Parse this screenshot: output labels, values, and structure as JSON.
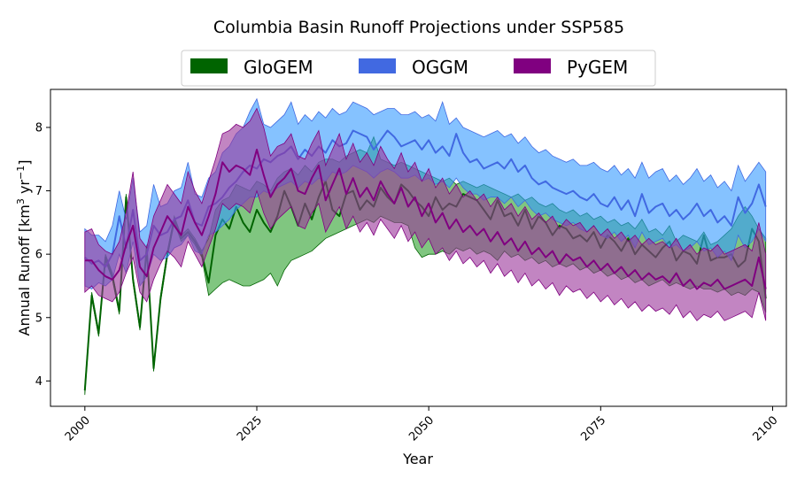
{
  "chart_data": {
    "type": "line",
    "title": "Columbia Basin Runoff Projections under SSP585",
    "xlabel": "Year",
    "ylabel": {
      "main": "Annual Runoff [km",
      "sup1": "3",
      "mid": " yr",
      "sup2": "−1",
      "end": "]"
    },
    "xlim": [
      1995,
      2102
    ],
    "ylim": [
      3.6,
      8.6
    ],
    "x_ticks": [
      2000,
      2025,
      2050,
      2075,
      2100
    ],
    "y_ticks": [
      4,
      5,
      6,
      7,
      8
    ],
    "legend": [
      "GloGEM",
      "OGGM",
      "PyGEM"
    ],
    "legend_position": "top-center",
    "years_start": 2000,
    "series": [
      {
        "name": "GloGEM",
        "color": "#006400",
        "fill": "#2ca02c",
        "mean": [
          3.85,
          5.35,
          4.75,
          5.95,
          5.65,
          5.1,
          6.9,
          5.6,
          4.85,
          6.1,
          4.2,
          5.3,
          6.0,
          6.55,
          6.25,
          6.35,
          6.2,
          6.0,
          5.55,
          6.3,
          6.55,
          6.4,
          6.75,
          6.5,
          6.35,
          6.7,
          6.5,
          6.35,
          6.6,
          7.0,
          6.75,
          6.45,
          6.8,
          6.55,
          6.9,
          7.15,
          6.7,
          6.6,
          6.95,
          7.0,
          6.7,
          6.85,
          6.75,
          7.05,
          6.9,
          6.8,
          7.1,
          7.0,
          6.85,
          6.75,
          6.6,
          6.9,
          6.7,
          6.8,
          6.75,
          6.95,
          6.9,
          6.85,
          6.7,
          6.55,
          6.85,
          6.6,
          6.65,
          6.45,
          6.7,
          6.4,
          6.6,
          6.5,
          6.3,
          6.45,
          6.4,
          6.25,
          6.3,
          6.2,
          6.35,
          6.1,
          6.3,
          6.2,
          6.05,
          6.25,
          6.0,
          6.15,
          6.05,
          5.95,
          6.1,
          6.2,
          5.9,
          6.05,
          6.0,
          5.85,
          6.3,
          5.9,
          5.95,
          5.95,
          6.0,
          5.8,
          5.9,
          6.4,
          6.2,
          5.3
        ],
        "lower": [
          3.78,
          5.3,
          4.7,
          5.9,
          5.6,
          5.05,
          6.85,
          5.55,
          4.8,
          6.05,
          4.15,
          5.25,
          5.95,
          6.5,
          6.2,
          6.3,
          6.15,
          5.95,
          5.35,
          5.45,
          5.55,
          5.6,
          5.55,
          5.5,
          5.5,
          5.55,
          5.6,
          5.7,
          5.5,
          5.75,
          5.9,
          5.95,
          6.0,
          6.05,
          6.15,
          6.25,
          6.3,
          6.35,
          6.4,
          6.45,
          6.5,
          6.55,
          6.5,
          6.6,
          6.55,
          6.5,
          6.5,
          6.45,
          6.1,
          5.95,
          6.0,
          6.0,
          6.05,
          6.0,
          6.1,
          6.05,
          6.1,
          6.0,
          6.05,
          6.0,
          5.9,
          6.05,
          5.95,
          6.0,
          5.9,
          5.95,
          5.85,
          5.9,
          5.8,
          5.85,
          5.8,
          5.85,
          5.75,
          5.8,
          5.7,
          5.75,
          5.65,
          5.7,
          5.6,
          5.65,
          5.55,
          5.6,
          5.5,
          5.55,
          5.6,
          5.5,
          5.55,
          5.5,
          5.45,
          5.5,
          5.45,
          5.45,
          5.4,
          5.45,
          5.35,
          5.4,
          5.35,
          5.45,
          5.4,
          5.08
        ],
        "upper": [
          3.92,
          5.4,
          4.8,
          6.0,
          5.7,
          5.15,
          6.95,
          5.65,
          4.9,
          6.15,
          4.25,
          5.35,
          6.05,
          6.6,
          6.3,
          6.4,
          6.25,
          6.05,
          6.25,
          6.7,
          6.85,
          6.9,
          7.1,
          7.05,
          7.0,
          7.15,
          7.1,
          7.0,
          7.2,
          7.3,
          7.35,
          7.25,
          7.4,
          7.3,
          7.45,
          7.5,
          7.5,
          7.45,
          7.55,
          7.6,
          7.65,
          7.6,
          7.85,
          7.5,
          7.45,
          7.4,
          7.45,
          7.4,
          7.35,
          7.3,
          7.25,
          7.2,
          7.15,
          7.2,
          7.1,
          7.15,
          7.1,
          7.05,
          7.1,
          7.05,
          7.0,
          6.95,
          6.9,
          6.95,
          6.85,
          6.9,
          6.8,
          6.75,
          6.8,
          6.7,
          6.65,
          6.7,
          6.6,
          6.65,
          6.55,
          6.6,
          6.5,
          6.55,
          6.45,
          6.5,
          6.4,
          6.55,
          6.35,
          6.4,
          6.3,
          6.45,
          6.2,
          6.3,
          6.25,
          6.2,
          6.35,
          6.15,
          6.2,
          6.3,
          6.4,
          6.6,
          6.75,
          6.6,
          6.4,
          6.25
        ]
      },
      {
        "name": "OGGM",
        "color": "#4169e1",
        "fill": "#3399ff",
        "mean": [
          5.95,
          5.85,
          5.9,
          5.8,
          6.0,
          6.6,
          6.1,
          6.7,
          5.9,
          6.0,
          6.45,
          6.3,
          6.35,
          6.55,
          6.6,
          6.85,
          6.5,
          6.45,
          6.75,
          6.8,
          6.9,
          7.05,
          7.15,
          7.3,
          7.4,
          7.35,
          7.5,
          7.45,
          7.55,
          7.6,
          7.7,
          7.5,
          7.65,
          7.55,
          7.7,
          7.6,
          7.8,
          7.7,
          7.75,
          7.95,
          7.9,
          7.85,
          7.65,
          7.8,
          7.95,
          7.85,
          7.7,
          7.75,
          7.8,
          7.65,
          7.8,
          7.6,
          7.7,
          7.55,
          7.9,
          7.6,
          7.45,
          7.5,
          7.35,
          7.4,
          7.45,
          7.35,
          7.5,
          7.3,
          7.4,
          7.2,
          7.1,
          7.15,
          7.05,
          7.0,
          6.95,
          7.0,
          6.9,
          6.85,
          6.95,
          6.8,
          6.75,
          6.9,
          6.7,
          6.85,
          6.6,
          6.95,
          6.65,
          6.75,
          6.8,
          6.6,
          6.7,
          6.55,
          6.65,
          6.8,
          6.6,
          6.7,
          6.5,
          6.6,
          6.45,
          6.9,
          6.65,
          6.8,
          7.1,
          6.75
        ],
        "lower": [
          5.5,
          5.45,
          5.55,
          5.5,
          5.6,
          6.0,
          5.7,
          6.2,
          5.5,
          5.65,
          6.0,
          5.9,
          5.95,
          6.1,
          6.15,
          6.3,
          6.05,
          6.0,
          6.3,
          6.35,
          6.45,
          6.55,
          6.7,
          6.8,
          6.9,
          6.9,
          7.0,
          6.95,
          7.05,
          7.1,
          7.15,
          7.05,
          7.15,
          7.1,
          7.2,
          7.15,
          7.3,
          7.25,
          7.3,
          7.4,
          7.35,
          7.3,
          7.2,
          7.3,
          7.35,
          7.3,
          7.2,
          7.2,
          7.25,
          7.15,
          7.2,
          7.1,
          7.15,
          7.05,
          7.2,
          7.05,
          6.95,
          6.95,
          6.85,
          6.9,
          6.9,
          6.8,
          6.9,
          6.75,
          6.85,
          6.7,
          6.6,
          6.65,
          6.55,
          6.5,
          6.45,
          6.5,
          6.4,
          6.35,
          6.45,
          6.3,
          6.25,
          6.35,
          6.2,
          6.3,
          6.1,
          6.35,
          6.15,
          6.2,
          6.25,
          6.1,
          6.15,
          6.05,
          6.1,
          6.2,
          6.05,
          6.1,
          5.95,
          6.05,
          5.9,
          6.3,
          6.1,
          6.2,
          6.4,
          6.2
        ],
        "upper": [
          6.4,
          6.3,
          6.3,
          6.2,
          6.45,
          7.0,
          6.55,
          7.2,
          6.35,
          6.45,
          7.1,
          6.75,
          6.8,
          7.0,
          7.05,
          7.45,
          6.95,
          6.9,
          7.2,
          7.3,
          7.6,
          7.7,
          7.9,
          8.0,
          8.25,
          8.45,
          8.05,
          8.0,
          8.1,
          8.2,
          8.4,
          8.05,
          8.2,
          8.1,
          8.25,
          8.15,
          8.3,
          8.2,
          8.25,
          8.4,
          8.35,
          8.3,
          8.2,
          8.25,
          8.3,
          8.3,
          8.2,
          8.2,
          8.25,
          8.15,
          8.2,
          8.1,
          8.4,
          8.05,
          8.15,
          8.0,
          7.95,
          7.9,
          7.85,
          7.9,
          7.95,
          7.85,
          7.9,
          7.75,
          7.85,
          7.7,
          7.6,
          7.65,
          7.55,
          7.5,
          7.45,
          7.5,
          7.4,
          7.4,
          7.45,
          7.35,
          7.3,
          7.4,
          7.25,
          7.35,
          7.2,
          7.45,
          7.2,
          7.3,
          7.35,
          7.15,
          7.25,
          7.1,
          7.2,
          7.35,
          7.15,
          7.25,
          7.05,
          7.15,
          7.0,
          7.4,
          7.15,
          7.3,
          7.45,
          7.3
        ]
      },
      {
        "name": "PyGEM",
        "color": "#800080",
        "fill": "#993399",
        "mean": [
          5.9,
          5.9,
          5.75,
          5.65,
          5.6,
          5.75,
          6.15,
          6.45,
          5.8,
          5.65,
          6.1,
          6.35,
          6.6,
          6.45,
          6.3,
          6.75,
          6.5,
          6.3,
          6.6,
          6.95,
          7.45,
          7.3,
          7.4,
          7.35,
          7.25,
          7.65,
          7.25,
          6.9,
          7.1,
          7.2,
          7.35,
          7.0,
          6.95,
          7.2,
          7.4,
          6.85,
          7.1,
          7.35,
          6.95,
          7.2,
          6.9,
          7.05,
          6.85,
          7.15,
          6.95,
          6.8,
          7.05,
          6.75,
          6.9,
          6.6,
          6.8,
          6.5,
          6.65,
          6.4,
          6.55,
          6.35,
          6.45,
          6.3,
          6.4,
          6.2,
          6.35,
          6.15,
          6.25,
          6.05,
          6.2,
          6.0,
          6.1,
          5.95,
          6.05,
          5.85,
          6.0,
          5.9,
          5.95,
          5.8,
          5.9,
          5.75,
          5.85,
          5.7,
          5.8,
          5.65,
          5.75,
          5.6,
          5.7,
          5.6,
          5.65,
          5.55,
          5.7,
          5.5,
          5.6,
          5.45,
          5.55,
          5.5,
          5.6,
          5.45,
          5.5,
          5.55,
          5.6,
          5.5,
          5.95,
          5.45
        ],
        "lower": [
          5.4,
          5.5,
          5.35,
          5.3,
          5.25,
          5.4,
          5.7,
          5.95,
          5.4,
          5.25,
          5.6,
          5.85,
          6.05,
          5.95,
          5.8,
          6.2,
          6.0,
          5.8,
          6.1,
          6.4,
          6.8,
          6.7,
          6.8,
          6.75,
          6.65,
          7.0,
          6.65,
          6.4,
          6.55,
          6.65,
          6.75,
          6.45,
          6.4,
          6.65,
          6.8,
          6.35,
          6.55,
          6.75,
          6.4,
          6.6,
          6.35,
          6.5,
          6.3,
          6.55,
          6.4,
          6.25,
          6.45,
          6.2,
          6.35,
          6.1,
          6.25,
          6.0,
          6.1,
          5.9,
          6.05,
          5.85,
          5.95,
          5.8,
          5.9,
          5.7,
          5.85,
          5.65,
          5.75,
          5.55,
          5.7,
          5.5,
          5.6,
          5.45,
          5.55,
          5.35,
          5.5,
          5.4,
          5.45,
          5.3,
          5.4,
          5.25,
          5.35,
          5.2,
          5.3,
          5.15,
          5.25,
          5.1,
          5.2,
          5.1,
          5.15,
          5.05,
          5.2,
          5.0,
          5.1,
          4.95,
          5.05,
          5.0,
          5.1,
          4.95,
          5.0,
          5.05,
          5.1,
          5.0,
          5.4,
          4.95
        ],
        "upper": [
          6.35,
          6.4,
          6.15,
          6.05,
          6.0,
          6.2,
          6.65,
          7.3,
          6.25,
          6.1,
          6.6,
          6.85,
          7.1,
          6.95,
          6.8,
          7.3,
          7.0,
          6.8,
          7.15,
          7.5,
          7.9,
          7.95,
          8.05,
          8.0,
          8.1,
          8.3,
          8.0,
          7.55,
          7.7,
          7.75,
          7.9,
          7.55,
          7.5,
          7.75,
          7.95,
          7.4,
          7.65,
          7.9,
          7.5,
          7.75,
          7.45,
          7.6,
          7.4,
          7.7,
          7.5,
          7.35,
          7.6,
          7.3,
          7.45,
          7.15,
          7.35,
          7.05,
          7.2,
          6.95,
          7.1,
          6.9,
          7.0,
          6.85,
          6.95,
          6.75,
          6.9,
          6.7,
          6.8,
          6.6,
          6.75,
          6.55,
          6.65,
          6.5,
          6.6,
          6.4,
          6.55,
          6.45,
          6.5,
          6.35,
          6.45,
          6.3,
          6.4,
          6.25,
          6.35,
          6.2,
          6.3,
          6.15,
          6.25,
          6.15,
          6.2,
          6.1,
          6.25,
          6.05,
          6.15,
          6.0,
          6.1,
          6.05,
          6.15,
          6.0,
          6.05,
          6.1,
          6.15,
          6.05,
          6.5,
          6.0
        ]
      }
    ]
  }
}
